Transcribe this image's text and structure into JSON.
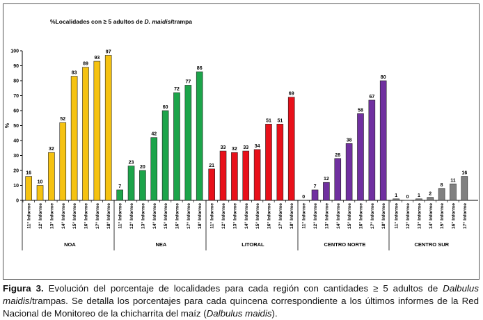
{
  "chart_data": {
    "type": "bar",
    "title_parts": [
      "%Localidades con ≥ 5 adultos de ",
      "D. maidis",
      "/trampa"
    ],
    "ylabel": "%",
    "ylim": [
      0,
      100
    ],
    "yticks": [
      0,
      10,
      20,
      30,
      40,
      50,
      60,
      70,
      80,
      90,
      100
    ],
    "groups": [
      {
        "name": "NOA",
        "color": "#F5C211",
        "categories": [
          "11° Informe",
          "12° Informe",
          "13° Informe",
          "14° Informe",
          "15° Informe",
          "16° Informe",
          "17° Informe",
          "18° Informe"
        ],
        "values": [
          16,
          10,
          32,
          52,
          83,
          89,
          93,
          97
        ]
      },
      {
        "name": "NEA",
        "color": "#1CA44A",
        "categories": [
          "11° Informe",
          "12° Informe",
          "13° Informe",
          "14° Informe",
          "15° Informe",
          "16° Informe",
          "17° Informe",
          "18° Informe"
        ],
        "values": [
          7,
          23,
          20,
          42,
          60,
          72,
          77,
          86
        ]
      },
      {
        "name": "LITORAL",
        "color": "#E8101A",
        "categories": [
          "11° Informe",
          "12° Informe",
          "13° Informe",
          "14° Informe",
          "15° Informe",
          "16° Informe",
          "17° Informe",
          "18° Informe"
        ],
        "values": [
          21,
          33,
          32,
          33,
          34,
          51,
          51,
          69
        ]
      },
      {
        "name": "CENTRO NORTE",
        "color": "#7030A0",
        "categories": [
          "11° Informe",
          "12° Informe",
          "13° Informe",
          "14° Informe",
          "15° Informe",
          "16° Informe",
          "17° Informe",
          "18° Informe"
        ],
        "values": [
          0,
          7,
          12,
          28,
          38,
          58,
          67,
          80
        ]
      },
      {
        "name": "CENTRO SUR",
        "color": "#808080",
        "categories": [
          "11° Informe",
          "12° Informe",
          "13° Informe",
          "14° Informe",
          "15° Informe",
          "16° Informe",
          "17° Informe"
        ],
        "values": [
          1,
          0,
          1,
          2,
          8,
          11,
          16
        ]
      }
    ],
    "grid": false,
    "legend": "none"
  },
  "caption": {
    "label": "Figura 3.",
    "text1": " Evolución del porcentaje de localidades para cada región con cantidades ≥ 5 adultos de ",
    "italic1": "Dalbulus maidis",
    "text2": "/trampas. Se detalla los porcentajes para cada quincena correspondiente a los últimos informes de la Red Nacional de Monitoreo de la chicharrita del maíz (",
    "italic2": "Dalbulus maidis",
    "text3": ")."
  }
}
